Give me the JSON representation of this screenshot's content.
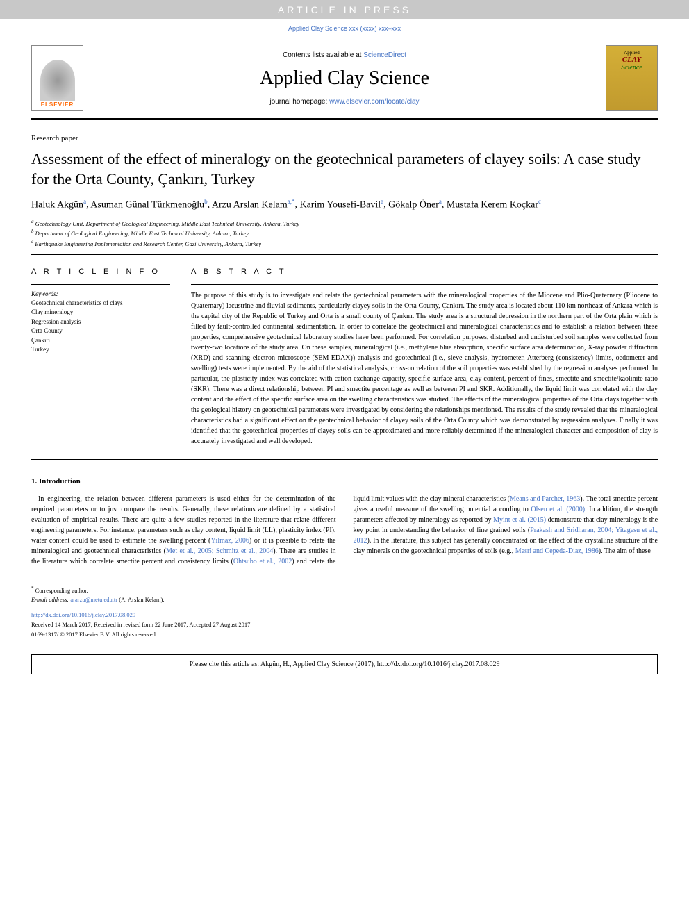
{
  "banner": {
    "text": "ARTICLE IN PRESS"
  },
  "journal_ref": "Applied Clay Science xxx (xxxx) xxx–xxx",
  "header": {
    "contents_available": "Contents lists available at ",
    "sciencedirect": "ScienceDirect",
    "journal_title": "Applied Clay Science",
    "homepage_label": "journal homepage: ",
    "homepage_url": "www.elsevier.com/locate/clay",
    "elsevier_label": "ELSEVIER",
    "cover_line1": "Applied",
    "cover_line2": "CLAY",
    "cover_line3": "Science"
  },
  "article_type": "Research paper",
  "title": "Assessment of the effect of mineralogy on the geotechnical parameters of clayey soils: A case study for the Orta County, Çankırı, Turkey",
  "authors": [
    {
      "name": "Haluk Akgün",
      "affil": "a"
    },
    {
      "name": "Asuman Günal Türkmenoğlu",
      "affil": "b"
    },
    {
      "name": "Arzu Arslan Kelam",
      "affil": "a,*"
    },
    {
      "name": "Karim Yousefi-Bavil",
      "affil": "a"
    },
    {
      "name": "Gökalp Öner",
      "affil": "a"
    },
    {
      "name": "Mustafa Kerem Koçkar",
      "affil": "c"
    }
  ],
  "affiliations": [
    {
      "sup": "a",
      "text": "Geotechnology Unit, Department of Geological Engineering, Middle East Technical University, Ankara, Turkey"
    },
    {
      "sup": "b",
      "text": "Department of Geological Engineering, Middle East Technical University, Ankara, Turkey"
    },
    {
      "sup": "c",
      "text": "Earthquake Engineering Implementation and Research Center, Gazi University, Ankara, Turkey"
    }
  ],
  "article_info_heading": "A R T I C L E  I N F O",
  "keywords_label": "Keywords:",
  "keywords": [
    "Geotechnical characteristics of clays",
    "Clay mineralogy",
    "Regression analysis",
    "Orta County",
    "Çankırı",
    "Turkey"
  ],
  "abstract_heading": "A B S T R A C T",
  "abstract": "The purpose of this study is to investigate and relate the geotechnical parameters with the mineralogical properties of the Miocene and Plio-Quaternary (Pliocene to Quaternary) lacustrine and fluvial sediments, particularly clayey soils in the Orta County, Çankırı. The study area is located about 110 km northeast of Ankara which is the capital city of the Republic of Turkey and Orta is a small county of Çankırı. The study area is a structural depression in the northern part of the Orta plain which is filled by fault-controlled continental sedimentation. In order to correlate the geotechnical and mineralogical characteristics and to establish a relation between these properties, comprehensive geotechnical laboratory studies have been performed. For correlation purposes, disturbed and undisturbed soil samples were collected from twenty-two locations of the study area. On these samples, mineralogical (i.e., methylene blue absorption, specific surface area determination, X-ray powder diffraction (XRD) and scanning electron microscope (SEM-EDAX)) analysis and geotechnical (i.e., sieve analysis, hydrometer, Atterberg (consistency) limits, oedometer and swelling) tests were implemented. By the aid of the statistical analysis, cross-correlation of the soil properties was established by the regression analyses performed. In particular, the plasticity index was correlated with cation exchange capacity, specific surface area, clay content, percent of fines, smectite and smectite/kaolinite ratio (SKR). There was a direct relationship between PI and smectite percentage as well as between PI and SKR. Additionally, the liquid limit was correlated with the clay content and the effect of the specific surface area on the swelling characteristics was studied. The effects of the mineralogical properties of the Orta clays together with the geological history on geotechnical parameters were investigated by considering the relationships mentioned. The results of the study revealed that the mineralogical characteristics had a significant effect on the geotechnical behavior of clayey soils of the Orta County which was demonstrated by regression analyses. Finally it was identified that the geotechnical properties of clayey soils can be approximated and more reliably determined if the mineralogical character and composition of clay is accurately investigated and well developed.",
  "intro_heading": "1. Introduction",
  "intro_para1": "In engineering, the relation between different parameters is used either for the determination of the required parameters or to just compare the results. Generally, these relations are defined by a statistical evaluation of empirical results. There are quite a few studies reported in the literature that relate different engineering parameters. For instance, parameters such as clay content, liquid limit (LL), plasticity index (PI), water content could be used to estimate the swelling percent (",
  "ref_yilmaz": "Yılmaz, 2006",
  "intro_para1b": ") or it is possible to relate the mineralogical and geotechnical characteristics (",
  "ref_met": "Met et al., 2005; Schmitz et al., 2004",
  "intro_para1c": "). There",
  "intro_para2a": "are studies in the literature which correlate smectite percent and consistency limits (",
  "ref_ohtsubo": "Ohtsubo et al., 2002",
  "intro_para2b": ") and relate the liquid limit values with the clay mineral characteristics (",
  "ref_means": "Means and Parcher, 1963",
  "intro_para2c": "). The total smectite percent gives a useful measure of the swelling potential according to ",
  "ref_olsen": "Olsen et al. (2000)",
  "intro_para2d": ". In addition, the strength parameters affected by mineralogy as reported by ",
  "ref_myint": "Myint et al. (2015)",
  "intro_para2e": " demonstrate that clay mineralogy is the key point in understanding the behavior of fine grained soils (",
  "ref_prakash": "Prakash and Sridharan, 2004; Yitagesu et al., 2012",
  "intro_para2f": "). In the literature, this subject has generally concentrated on the effect of the crystalline structure of the clay minerals on the geotechnical properties of soils (e.g., ",
  "ref_mesri": "Mesri and Cepeda-Diaz, 1986",
  "intro_para2g": "). The aim of these",
  "footer": {
    "corresp_marker": "*",
    "corresp_text": "Corresponding author.",
    "email_label": "E-mail address: ",
    "email": "ararzu@metu.edu.tr",
    "email_author": " (A. Arslan Kelam).",
    "doi": "http://dx.doi.org/10.1016/j.clay.2017.08.029",
    "received": "Received 14 March 2017; Received in revised form 22 June 2017; Accepted 27 August 2017",
    "copyright": "0169-1317/ © 2017 Elsevier B.V. All rights reserved."
  },
  "cite_box": "Please cite this article as: Akgün, H., Applied Clay Science (2017), http://dx.doi.org/10.1016/j.clay.2017.08.029"
}
